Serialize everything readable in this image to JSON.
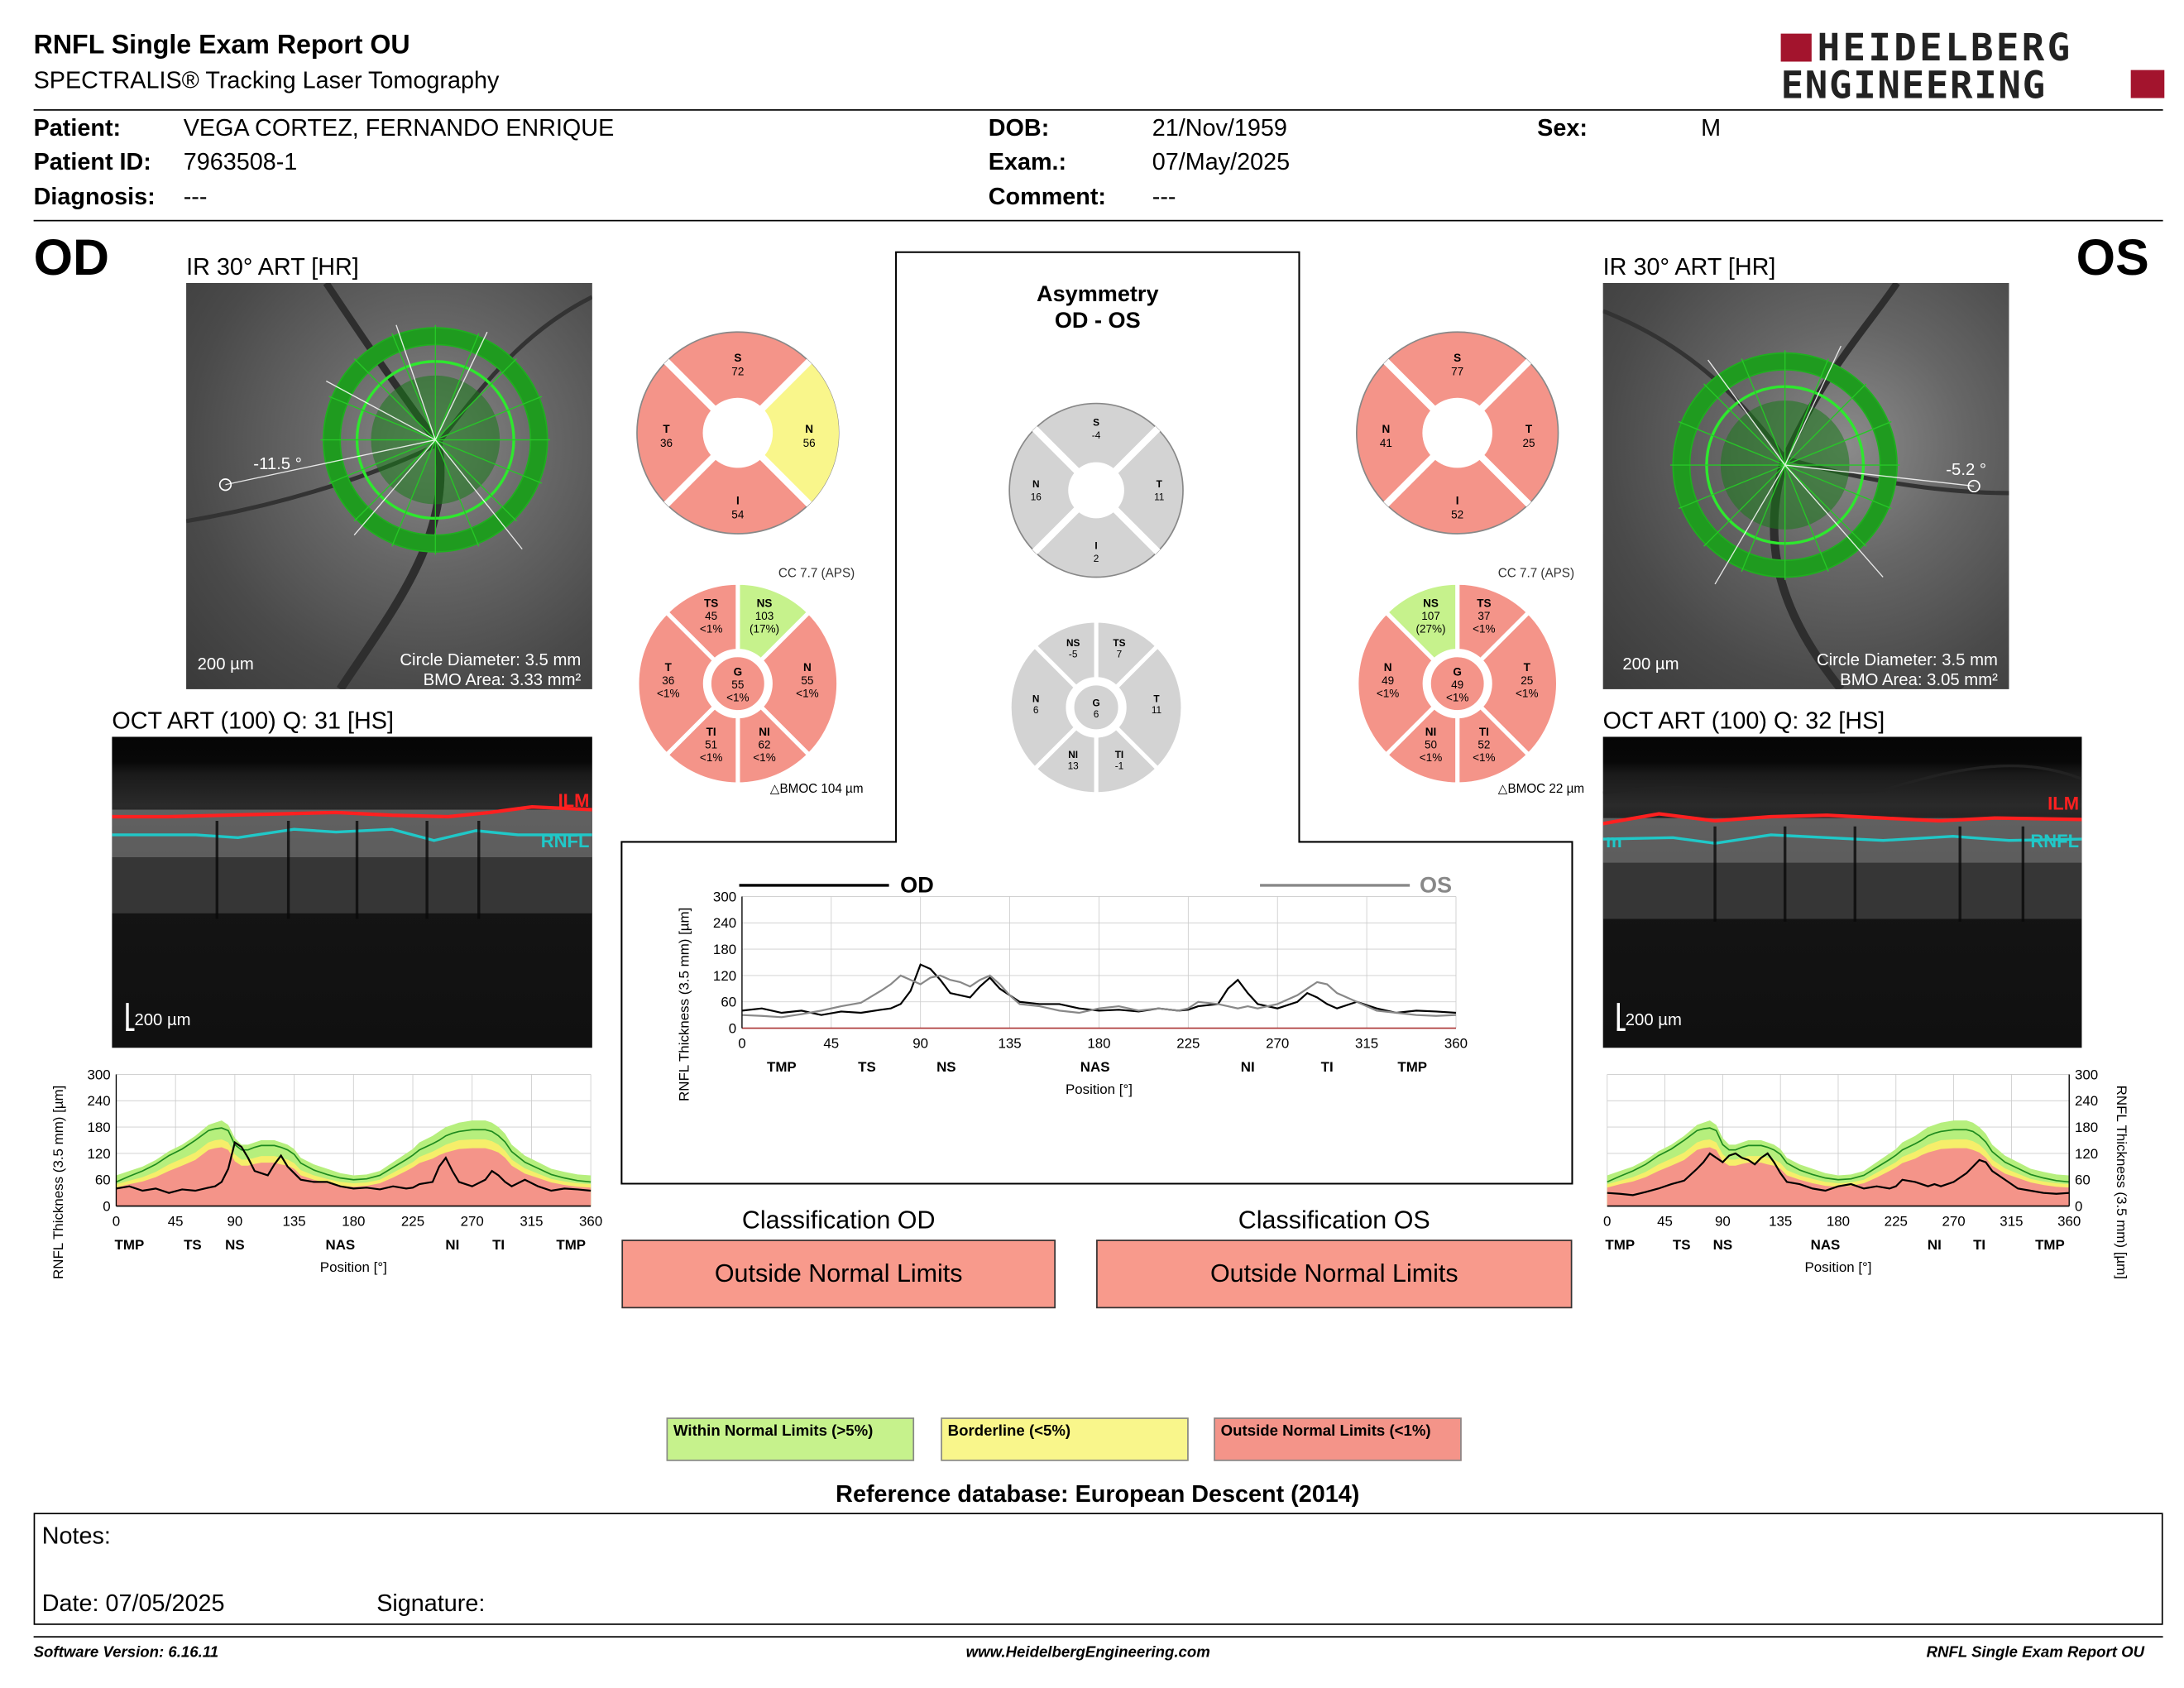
{
  "header": {
    "title": "RNFL Single Exam Report OU",
    "subtitle": "SPECTRALIS® Tracking Laser Tomography",
    "logo_line1": "HEIDELBERG",
    "logo_line2": "ENGINEERING"
  },
  "patient": {
    "name_label": "Patient:",
    "name": "VEGA CORTEZ, FERNANDO ENRIQUE",
    "id_label": "Patient ID:",
    "id": "7963508-1",
    "diagnosis_label": "Diagnosis:",
    "diagnosis": "---",
    "dob_label": "DOB:",
    "dob": "21/Nov/1959",
    "exam_label": "Exam.:",
    "exam": "07/May/2025",
    "comment_label": "Comment:",
    "comment": "---",
    "sex_label": "Sex:",
    "sex": "M"
  },
  "od": {
    "eye": "OD",
    "ir_title": "IR 30° ART [HR]",
    "angle": "-11.5 °",
    "scale": "200 µm",
    "circle_diameter": "Circle Diameter: 3.5 mm",
    "bmo_area": "BMO Area: 3.33 mm²",
    "oct_title": "OCT ART (100) Q: 31 [HS]",
    "oct_scale": "200 µm",
    "ilm": "ILM",
    "rnfl": "RNFL",
    "quad": {
      "S": "72",
      "N": "56",
      "I": "54",
      "T": "36"
    },
    "cc": "CC 7.7 (APS)",
    "bmoc": "BMOC 104 µm",
    "sectors": {
      "TS": [
        "TS",
        "45",
        "<1%"
      ],
      "NS": [
        "NS",
        "103",
        "(17%)"
      ],
      "N": [
        "N",
        "55",
        "<1%"
      ],
      "NI": [
        "NI",
        "62",
        "<1%"
      ],
      "TI": [
        "TI",
        "51",
        "<1%"
      ],
      "T": [
        "T",
        "36",
        "<1%"
      ],
      "G": [
        "G",
        "55",
        "<1%"
      ]
    },
    "classification_label": "Classification OD",
    "classification": "Outside Normal Limits"
  },
  "os": {
    "eye": "OS",
    "ir_title": "IR 30° ART [HR]",
    "angle": "-5.2 °",
    "scale": "200 µm",
    "circle_diameter": "Circle Diameter: 3.5 mm",
    "bmo_area": "BMO Area: 3.05 mm²",
    "oct_title": "OCT ART (100) Q: 32 [HS]",
    "oct_scale": "200 µm",
    "ilm": "ILM",
    "rnfl": "RNFL",
    "oct_edge": "m",
    "quad": {
      "S": "77",
      "T": "25",
      "I": "52",
      "N": "41"
    },
    "cc": "CC 7.7 (APS)",
    "bmoc": "BMOC 22 µm",
    "sectors": {
      "NS": [
        "NS",
        "107",
        "(27%)"
      ],
      "TS": [
        "TS",
        "37",
        "<1%"
      ],
      "T": [
        "T",
        "25",
        "<1%"
      ],
      "TI": [
        "TI",
        "52",
        "<1%"
      ],
      "NI": [
        "NI",
        "50",
        "<1%"
      ],
      "N": [
        "N",
        "49",
        "<1%"
      ],
      "G": [
        "G",
        "49",
        "<1%"
      ]
    },
    "classification_label": "Classification OS",
    "classification": "Outside Normal Limits"
  },
  "asymmetry": {
    "title1": "Asymmetry",
    "title2": "OD - OS",
    "quad": {
      "S": "-4",
      "N": "16",
      "T": "11",
      "I": "2"
    },
    "sectors": {
      "NS": [
        "NS",
        "-5"
      ],
      "TS": [
        "TS",
        "7"
      ],
      "N": [
        "N",
        "6"
      ],
      "G": [
        "G",
        "6"
      ],
      "T": [
        "T",
        "11"
      ],
      "NI": [
        "NI",
        "13"
      ],
      "TI": [
        "TI",
        "-1"
      ]
    }
  },
  "colors": {
    "red": "#f49489",
    "green": "#c6f28c",
    "yellow": "#f9f68b",
    "gray": "#d3d3d3",
    "band_red": "#f49489",
    "band_yellow": "#f6ee6a",
    "band_green": "#b6ef7d"
  },
  "legend": {
    "within": "Within Normal Limits (>5%)",
    "borderline": "Borderline (<5%)",
    "outside": "Outside Normal Limits (<1%)"
  },
  "reference": "Reference database: European Descent (2014)",
  "notes": {
    "notes_label": "Notes:",
    "date": "Date: 07/05/2025",
    "signature": "Signature:"
  },
  "footer": {
    "software": "Software Version: 6.16.11",
    "website": "www.HeidelbergEngineering.com",
    "report": "RNFL Single Exam Report OU"
  },
  "chart_data": [
    {
      "type": "line",
      "id": "od_profile",
      "ylabel": "RNFL Thickness (3.5 mm) [µm]",
      "xlabel": "Position [°]",
      "xticks": [
        0,
        45,
        90,
        135,
        180,
        225,
        270,
        315,
        360
      ],
      "yticks": [
        0,
        60,
        120,
        180,
        240,
        300
      ],
      "sector_labels": [
        "TMP",
        "TS",
        "NS",
        "NAS",
        "NI",
        "TI",
        "TMP"
      ],
      "sector_positions": [
        10,
        58,
        90,
        170,
        255,
        290,
        345
      ],
      "xlim": [
        0,
        360
      ],
      "ylim": [
        0,
        300
      ],
      "x": [
        0,
        10,
        20,
        30,
        40,
        50,
        60,
        70,
        75,
        80,
        85,
        90,
        95,
        100,
        105,
        110,
        115,
        120,
        125,
        130,
        135,
        140,
        150,
        160,
        170,
        180,
        190,
        200,
        210,
        220,
        225,
        230,
        240,
        245,
        250,
        255,
        260,
        270,
        280,
        285,
        290,
        295,
        300,
        310,
        320,
        330,
        340,
        350,
        360
      ],
      "values": [
        40,
        45,
        35,
        40,
        30,
        38,
        35,
        42,
        45,
        55,
        85,
        145,
        135,
        110,
        80,
        75,
        70,
        95,
        115,
        90,
        75,
        60,
        55,
        55,
        45,
        40,
        42,
        38,
        45,
        40,
        42,
        50,
        55,
        90,
        110,
        80,
        55,
        45,
        60,
        80,
        70,
        55,
        45,
        60,
        45,
        35,
        40,
        38,
        35
      ],
      "band_green": [
        70,
        80,
        90,
        105,
        125,
        140,
        160,
        185,
        190,
        195,
        185,
        155,
        140,
        140,
        145,
        150,
        150,
        150,
        145,
        140,
        130,
        110,
        95,
        85,
        75,
        70,
        72,
        80,
        100,
        120,
        130,
        145,
        160,
        170,
        180,
        185,
        190,
        195,
        195,
        190,
        180,
        165,
        140,
        115,
        100,
        85,
        78,
        72,
        70
      ],
      "band_yellow_top": [
        50,
        58,
        66,
        78,
        95,
        108,
        122,
        145,
        150,
        152,
        145,
        118,
        106,
        106,
        110,
        114,
        114,
        114,
        110,
        106,
        98,
        82,
        70,
        62,
        55,
        52,
        54,
        60,
        76,
        92,
        100,
        112,
        124,
        132,
        140,
        145,
        150,
        152,
        152,
        148,
        140,
        126,
        106,
        86,
        74,
        62,
        56,
        52,
        50
      ],
      "band_red_top": [
        42,
        50,
        56,
        66,
        80,
        92,
        105,
        128,
        132,
        134,
        128,
        102,
        92,
        92,
        96,
        99,
        99,
        99,
        95,
        92,
        85,
        70,
        60,
        52,
        46,
        44,
        46,
        52,
        65,
        80,
        88,
        98,
        108,
        116,
        122,
        126,
        130,
        132,
        132,
        128,
        122,
        110,
        92,
        74,
        64,
        54,
        48,
        44,
        42
      ],
      "normal_mean": [
        55,
        68,
        80,
        95,
        115,
        130,
        150,
        172,
        176,
        178,
        172,
        140,
        128,
        128,
        134,
        138,
        138,
        138,
        134,
        128,
        118,
        98,
        82,
        72,
        64,
        60,
        62,
        70,
        88,
        106,
        116,
        128,
        142,
        150,
        160,
        166,
        170,
        174,
        174,
        170,
        160,
        146,
        124,
        100,
        86,
        72,
        64,
        58,
        55
      ]
    },
    {
      "type": "line",
      "id": "os_profile",
      "ylabel": "RNFL Thickness (3.5 mm) [µm]",
      "xlabel": "Position [°]",
      "xticks": [
        0,
        45,
        90,
        135,
        180,
        225,
        270,
        315,
        360
      ],
      "yticks": [
        0,
        60,
        120,
        180,
        240,
        300
      ],
      "sector_labels": [
        "TMP",
        "TS",
        "NS",
        "NAS",
        "NI",
        "TI",
        "TMP"
      ],
      "sector_positions": [
        10,
        58,
        90,
        170,
        255,
        290,
        345
      ],
      "xlim": [
        0,
        360
      ],
      "ylim": [
        0,
        300
      ],
      "x": [
        0,
        10,
        20,
        30,
        40,
        50,
        60,
        70,
        75,
        80,
        85,
        90,
        95,
        100,
        105,
        110,
        115,
        120,
        125,
        130,
        135,
        140,
        150,
        160,
        170,
        180,
        190,
        200,
        210,
        220,
        225,
        230,
        240,
        245,
        250,
        255,
        260,
        270,
        280,
        285,
        290,
        295,
        300,
        310,
        320,
        330,
        340,
        350,
        360
      ],
      "values": [
        30,
        28,
        25,
        32,
        40,
        50,
        58,
        85,
        100,
        120,
        110,
        100,
        115,
        120,
        110,
        105,
        95,
        110,
        120,
        100,
        75,
        55,
        50,
        40,
        35,
        45,
        50,
        40,
        45,
        40,
        45,
        60,
        55,
        50,
        45,
        50,
        45,
        55,
        75,
        90,
        105,
        100,
        80,
        60,
        40,
        35,
        30,
        28,
        30
      ],
      "band_green": [
        70,
        80,
        90,
        105,
        125,
        140,
        160,
        185,
        190,
        195,
        185,
        155,
        140,
        140,
        145,
        150,
        150,
        150,
        145,
        140,
        130,
        110,
        95,
        85,
        75,
        70,
        72,
        80,
        100,
        120,
        130,
        145,
        160,
        170,
        180,
        185,
        190,
        195,
        195,
        190,
        180,
        165,
        140,
        115,
        100,
        85,
        78,
        72,
        70
      ],
      "band_yellow_top": [
        50,
        58,
        66,
        78,
        95,
        108,
        122,
        145,
        150,
        152,
        145,
        118,
        106,
        106,
        110,
        114,
        114,
        114,
        110,
        106,
        98,
        82,
        70,
        62,
        55,
        52,
        54,
        60,
        76,
        92,
        100,
        112,
        124,
        132,
        140,
        145,
        150,
        152,
        152,
        148,
        140,
        126,
        106,
        86,
        74,
        62,
        56,
        52,
        50
      ],
      "band_red_top": [
        42,
        50,
        56,
        66,
        80,
        92,
        105,
        128,
        132,
        134,
        128,
        102,
        92,
        92,
        96,
        99,
        99,
        99,
        95,
        92,
        85,
        70,
        60,
        52,
        46,
        44,
        46,
        52,
        65,
        80,
        88,
        98,
        108,
        116,
        122,
        126,
        130,
        132,
        132,
        128,
        122,
        110,
        92,
        74,
        64,
        54,
        48,
        44,
        42
      ],
      "normal_mean": [
        55,
        68,
        80,
        95,
        115,
        130,
        150,
        172,
        176,
        178,
        172,
        140,
        128,
        128,
        134,
        138,
        138,
        138,
        134,
        128,
        118,
        98,
        82,
        72,
        64,
        60,
        62,
        70,
        88,
        106,
        116,
        128,
        142,
        150,
        160,
        166,
        170,
        174,
        174,
        170,
        160,
        146,
        124,
        100,
        86,
        72,
        64,
        58,
        55
      ]
    },
    {
      "type": "line",
      "id": "comparison",
      "ylabel": "RNFL Thickness (3.5 mm) [µm]",
      "xlabel": "Position [°]",
      "xticks": [
        0,
        45,
        90,
        135,
        180,
        225,
        270,
        315,
        360
      ],
      "yticks": [
        0,
        60,
        120,
        180,
        240,
        300
      ],
      "sector_labels": [
        "TMP",
        "TS",
        "NS",
        "NAS",
        "NI",
        "TI",
        "TMP"
      ],
      "sector_positions": [
        20,
        63,
        103,
        178,
        255,
        295,
        338
      ],
      "xlim": [
        0,
        360
      ],
      "ylim": [
        0,
        300
      ],
      "x": [
        0,
        10,
        20,
        30,
        40,
        50,
        60,
        70,
        75,
        80,
        85,
        90,
        95,
        100,
        105,
        110,
        115,
        120,
        125,
        130,
        135,
        140,
        150,
        160,
        170,
        180,
        190,
        200,
        210,
        220,
        225,
        230,
        240,
        245,
        250,
        255,
        260,
        270,
        280,
        285,
        290,
        295,
        300,
        310,
        320,
        330,
        340,
        350,
        360
      ],
      "series": [
        {
          "name": "OD",
          "values": [
            40,
            45,
            35,
            40,
            30,
            38,
            35,
            42,
            45,
            55,
            85,
            145,
            135,
            110,
            80,
            75,
            70,
            95,
            115,
            90,
            75,
            60,
            55,
            55,
            45,
            40,
            42,
            38,
            45,
            40,
            42,
            50,
            55,
            90,
            110,
            80,
            55,
            45,
            60,
            80,
            70,
            55,
            45,
            60,
            45,
            35,
            40,
            38,
            35
          ]
        },
        {
          "name": "OS",
          "values": [
            30,
            28,
            25,
            32,
            40,
            50,
            58,
            85,
            100,
            120,
            110,
            100,
            115,
            120,
            110,
            105,
            95,
            110,
            120,
            100,
            75,
            55,
            50,
            40,
            35,
            45,
            50,
            40,
            45,
            40,
            45,
            60,
            55,
            50,
            45,
            50,
            45,
            55,
            75,
            90,
            105,
            100,
            80,
            60,
            40,
            35,
            30,
            28,
            30
          ]
        }
      ]
    }
  ]
}
